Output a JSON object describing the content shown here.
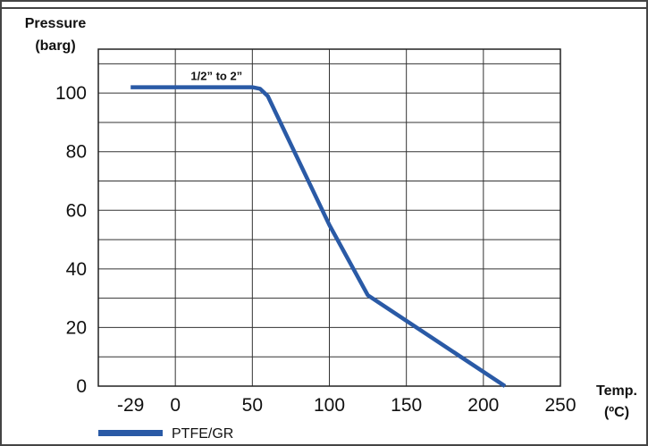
{
  "chart_data": {
    "type": "line",
    "title": "",
    "ylabel_lines": [
      "Pressure",
      "(barg)"
    ],
    "xlabel_lines": [
      "Temp.",
      "(ºC)"
    ],
    "xlim": [
      -50,
      250
    ],
    "ylim": [
      0,
      115
    ],
    "x_ticks": [
      -29,
      0,
      50,
      100,
      150,
      200,
      250
    ],
    "y_ticks": [
      0,
      20,
      40,
      60,
      80,
      100
    ],
    "grid": true,
    "legend_position": "bottom-left",
    "series": [
      {
        "name": "PTFE/GR",
        "color": "#2a5aa6",
        "x": [
          -29,
          50,
          55,
          60,
          100,
          125,
          214
        ],
        "y": [
          102,
          102,
          101.5,
          99,
          55,
          31,
          0
        ]
      }
    ],
    "annotations": [
      {
        "text": "1/2” to 2”",
        "x": 10,
        "y": 104.5
      }
    ]
  }
}
